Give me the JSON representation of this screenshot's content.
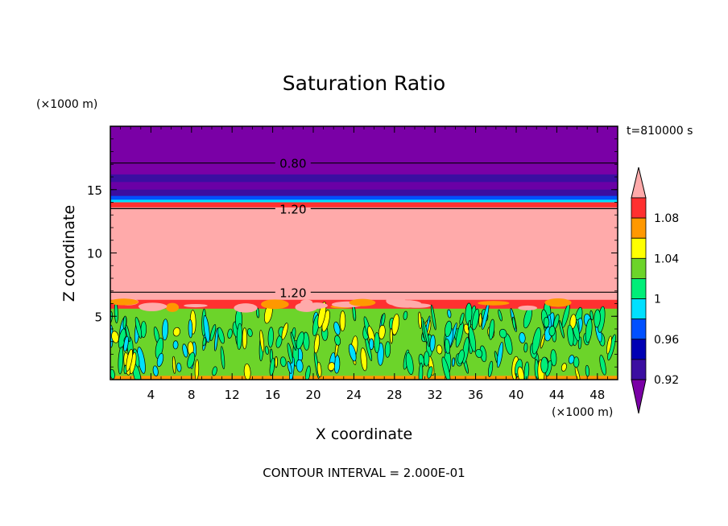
{
  "chart_data": {
    "type": "heatmap",
    "title": "Saturation Ratio",
    "xlabel": "X coordinate",
    "ylabel": "Z coordinate",
    "x_unit": "(×1000 m)",
    "y_unit": "(×1000 m)",
    "time_label": "t=810000 s",
    "footer": "CONTOUR INTERVAL = 2.000E-01",
    "xlim": [
      0,
      50
    ],
    "ylim": [
      0,
      20
    ],
    "x_ticks": [
      4,
      8,
      12,
      16,
      20,
      24,
      28,
      32,
      36,
      40,
      44,
      48
    ],
    "y_ticks": [
      5,
      10,
      15
    ],
    "colorbar": {
      "colors": [
        "#7a00a6",
        "#3b0ea1",
        "#0000b4",
        "#0050ff",
        "#00e0ff",
        "#00ee78",
        "#6cd42a",
        "#ffff00",
        "#ff9800",
        "#ff3030",
        "#ffaaaa"
      ],
      "labels": [
        "0.92",
        "0.96",
        "1",
        "1.04",
        "1.08"
      ],
      "extend": "both"
    },
    "contour_labels": [
      {
        "value": "0.80",
        "z": 17.1
      },
      {
        "value": "1.20",
        "z": 13.5
      },
      {
        "value": "1.20",
        "z": 6.9
      }
    ],
    "layers": [
      {
        "z_min": 16.2,
        "z_max": 20,
        "value": "<0.92",
        "color": "#7a00a6"
      },
      {
        "z_min": 15.6,
        "z_max": 16.2,
        "value": "0.92",
        "color": "#3b0ea1"
      },
      {
        "z_min": 15.0,
        "z_max": 15.6,
        "value": "0.92",
        "color": "#6a00a6"
      },
      {
        "z_min": 14.5,
        "z_max": 15.0,
        "value": "0.92",
        "color": "#3b0ea1"
      },
      {
        "z_min": 14.2,
        "z_max": 14.5,
        "value": "0.96",
        "color": "#0050ff"
      },
      {
        "z_min": 14.0,
        "z_max": 14.2,
        "value": "0.98",
        "color": "#00e0ff"
      },
      {
        "z_min": 13.6,
        "z_max": 14.0,
        "value": "1.08",
        "color": "#ff3030"
      },
      {
        "z_min": 6.3,
        "z_max": 13.6,
        "value": ">1.08",
        "color": "#ffaaaa"
      },
      {
        "z_min": 5.6,
        "z_max": 6.3,
        "value": "1.08",
        "color": "#ff3030"
      },
      {
        "z_min": 0.3,
        "z_max": 5.6,
        "value": "1",
        "color": "#6cd42a"
      },
      {
        "z_min": 0,
        "z_max": 0.3,
        "value": "1.04",
        "color": "#ff9800"
      }
    ]
  }
}
